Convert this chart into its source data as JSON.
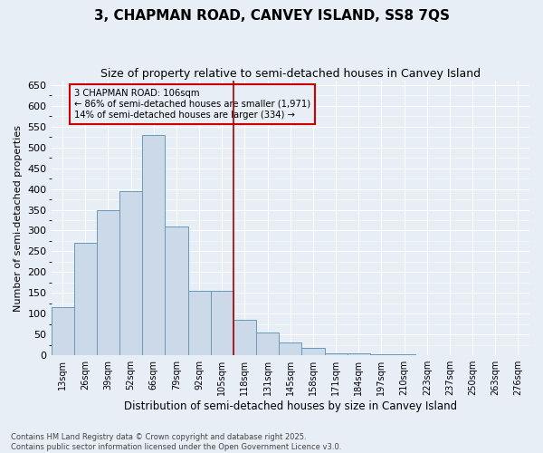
{
  "title": "3, CHAPMAN ROAD, CANVEY ISLAND, SS8 7QS",
  "subtitle": "Size of property relative to semi-detached houses in Canvey Island",
  "xlabel": "Distribution of semi-detached houses by size in Canvey Island",
  "ylabel": "Number of semi-detached properties",
  "footer1": "Contains HM Land Registry data © Crown copyright and database right 2025.",
  "footer2": "Contains public sector information licensed under the Open Government Licence v3.0.",
  "bins": [
    "13sqm",
    "26sqm",
    "39sqm",
    "52sqm",
    "66sqm",
    "79sqm",
    "92sqm",
    "105sqm",
    "118sqm",
    "131sqm",
    "145sqm",
    "158sqm",
    "171sqm",
    "184sqm",
    "197sqm",
    "210sqm",
    "223sqm",
    "237sqm",
    "250sqm",
    "263sqm",
    "276sqm"
  ],
  "values": [
    115,
    270,
    350,
    395,
    530,
    310,
    155,
    155,
    85,
    55,
    30,
    18,
    5,
    5,
    3,
    2,
    0,
    0,
    0,
    0,
    0
  ],
  "bar_color": "#ccd9e8",
  "bar_edge_color": "#6699bb",
  "vline_color": "#aa0000",
  "vline_x": 7.5,
  "annotation_text": "3 CHAPMAN ROAD: 106sqm\n← 86% of semi-detached houses are smaller (1,971)\n14% of semi-detached houses are larger (334) →",
  "annotation_box_color": "#cc0000",
  "ylim": [
    0,
    660
  ],
  "yticks": [
    0,
    50,
    100,
    150,
    200,
    250,
    300,
    350,
    400,
    450,
    500,
    550,
    600,
    650
  ],
  "bg_color": "#e8eef5",
  "grid_color": "#ffffff",
  "title_fontsize": 11,
  "subtitle_fontsize": 9
}
